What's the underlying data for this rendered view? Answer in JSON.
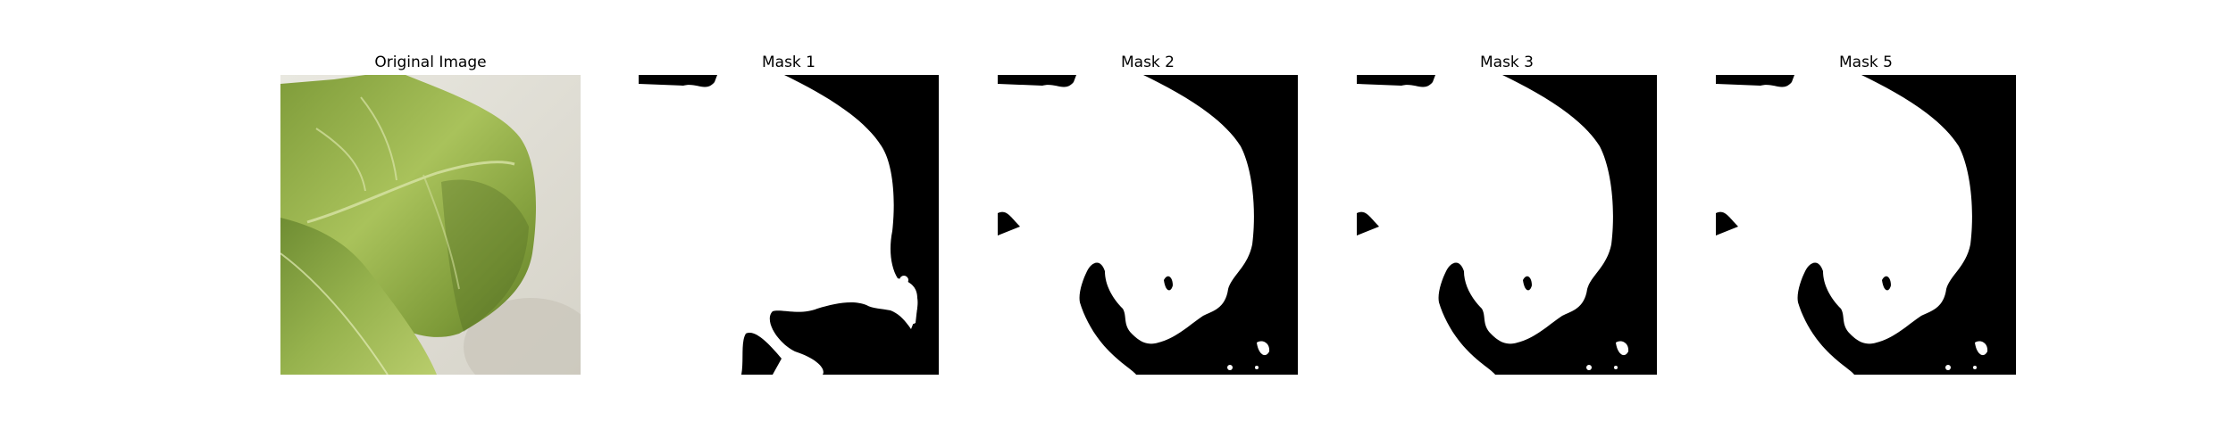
{
  "figure": {
    "panels": [
      {
        "id": "original",
        "title": "Original Image"
      },
      {
        "id": "mask1",
        "title": "Mask 1"
      },
      {
        "id": "mask2",
        "title": "Mask 2"
      },
      {
        "id": "mask3",
        "title": "Mask 3"
      },
      {
        "id": "mask5",
        "title": "Mask 5"
      }
    ],
    "colors": {
      "mask_foreground": "#ffffff",
      "mask_background": "#000000",
      "leaf_light": "#a8c25a",
      "leaf_dark": "#5e7f2c",
      "backdrop": "#e6e4dc"
    }
  }
}
